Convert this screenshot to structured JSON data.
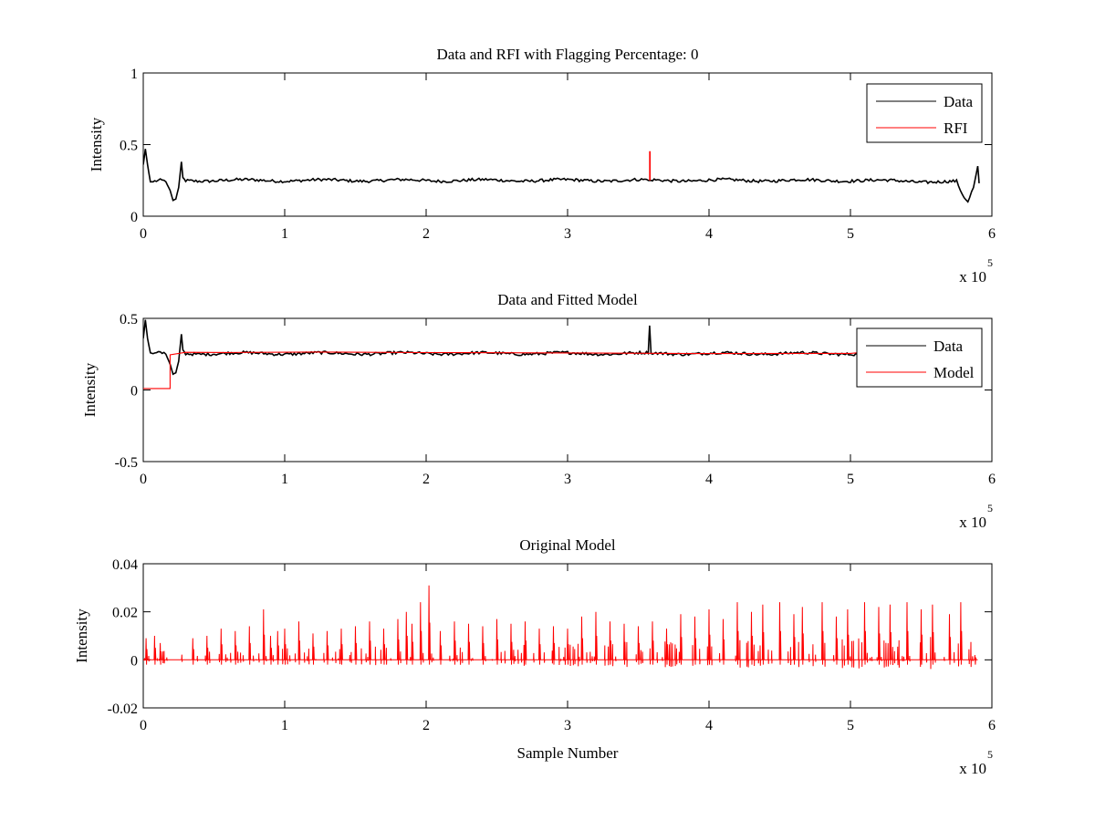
{
  "chart_data": [
    {
      "type": "line",
      "title": "Data and RFI with Flagging Percentage: 0",
      "xlabel": "",
      "ylabel": "Intensity",
      "xlim": [
        0,
        600000
      ],
      "ylim": [
        0,
        1
      ],
      "x_ticks": [
        "0",
        "1",
        "2",
        "3",
        "4",
        "5",
        "6"
      ],
      "y_ticks": [
        "0",
        "0.5",
        "1"
      ],
      "x_exponent": "x 10",
      "x_exponent_power": "5",
      "legend": {
        "position": "top-right",
        "entries": [
          "Data",
          "RFI"
        ]
      },
      "grid": false,
      "series": [
        {
          "name": "Data",
          "color": "#000000",
          "x": [
            0,
            1500,
            3000,
            5000,
            8000,
            12000,
            16000,
            19000,
            21000,
            23000,
            25000,
            27000,
            28000,
            30000,
            60000,
            120000,
            200000,
            300000,
            357000,
            358500,
            360000,
            400000,
            500000,
            575000,
            579000,
            583000,
            587000,
            590000,
            591000
          ],
          "y": [
            0.36,
            0.47,
            0.36,
            0.24,
            0.24,
            0.245,
            0.24,
            0.18,
            0.11,
            0.12,
            0.2,
            0.38,
            0.27,
            0.25,
            0.25,
            0.25,
            0.25,
            0.25,
            0.25,
            0.25,
            0.25,
            0.25,
            0.25,
            0.24,
            0.15,
            0.09,
            0.2,
            0.35,
            0.23
          ]
        },
        {
          "name": "RFI",
          "color": "#ff0000",
          "x": [
            358000,
            358000,
            358400,
            358400
          ],
          "y": [
            0.25,
            0.45,
            0.45,
            0.25
          ]
        }
      ]
    },
    {
      "type": "line",
      "title": "Data and Fitted Model",
      "xlabel": "",
      "ylabel": "Intensity",
      "xlim": [
        0,
        600000
      ],
      "ylim": [
        -0.5,
        0.5
      ],
      "x_ticks": [
        "0",
        "1",
        "2",
        "3",
        "4",
        "5",
        "6"
      ],
      "y_ticks": [
        "-0.5",
        "0",
        "0.5"
      ],
      "x_exponent": "x 10",
      "x_exponent_power": "5",
      "legend": {
        "position": "top-right",
        "entries": [
          "Data",
          "Model"
        ]
      },
      "grid": false,
      "series": [
        {
          "name": "Data",
          "color": "#000000",
          "x": [
            0,
            1500,
            3000,
            5000,
            8000,
            12000,
            16000,
            19000,
            21000,
            23000,
            25000,
            27000,
            28000,
            30000,
            60000,
            120000,
            200000,
            300000,
            357000,
            358000,
            359000,
            360000,
            400000,
            500000,
            505000
          ],
          "y": [
            0.36,
            0.49,
            0.36,
            0.26,
            0.25,
            0.255,
            0.25,
            0.18,
            0.11,
            0.12,
            0.2,
            0.39,
            0.28,
            0.255,
            0.255,
            0.255,
            0.255,
            0.255,
            0.255,
            0.45,
            0.255,
            0.255,
            0.255,
            0.255,
            0.25
          ]
        },
        {
          "name": "Model",
          "color": "#ff0000",
          "x": [
            0,
            10000,
            19000,
            19000,
            30000,
            60000,
            120000,
            200000,
            300000,
            400000,
            500000,
            505000
          ],
          "y": [
            0.01,
            0.01,
            0.01,
            0.25,
            0.26,
            0.26,
            0.26,
            0.26,
            0.26,
            0.26,
            0.26,
            0.26
          ]
        }
      ]
    },
    {
      "type": "line",
      "title": "Original Model",
      "xlabel": "Sample Number",
      "ylabel": "Intensity",
      "xlim": [
        0,
        600000
      ],
      "ylim": [
        -0.02,
        0.04
      ],
      "x_ticks": [
        "0",
        "1",
        "2",
        "3",
        "4",
        "5",
        "6"
      ],
      "y_ticks": [
        "-0.02",
        "0",
        "0.02",
        "0.04"
      ],
      "x_exponent": "x 10",
      "x_exponent_power": "5",
      "legend": null,
      "grid": false,
      "series": [
        {
          "color": "#ff0000",
          "x": [
            2000,
            8000,
            12000,
            35000,
            45000,
            55000,
            65000,
            75000,
            85000,
            90000,
            95000,
            100000,
            110000,
            120000,
            130000,
            140000,
            150000,
            160000,
            170000,
            180000,
            186000,
            190000,
            196000,
            202000,
            210000,
            220000,
            230000,
            240000,
            250000,
            260000,
            270000,
            280000,
            290000,
            300000,
            310000,
            320000,
            330000,
            340000,
            350000,
            360000,
            370000,
            380000,
            390000,
            400000,
            410000,
            420000,
            430000,
            438000,
            450000,
            460000,
            466000,
            480000,
            490000,
            498000,
            510000,
            520000,
            528000,
            540000,
            550000,
            558000,
            570000,
            578000,
            588000
          ],
          "y": [
            0.009,
            0.01,
            0.007,
            0.009,
            0.01,
            0.013,
            0.012,
            0.014,
            0.021,
            0.01,
            0.012,
            0.013,
            0.016,
            0.011,
            0.012,
            0.013,
            0.014,
            0.016,
            0.013,
            0.017,
            0.02,
            0.015,
            0.024,
            0.031,
            0.012,
            0.016,
            0.015,
            0.014,
            0.017,
            0.015,
            0.016,
            0.013,
            0.014,
            0.013,
            0.018,
            0.02,
            0.016,
            0.015,
            0.014,
            0.016,
            0.013,
            0.019,
            0.018,
            0.021,
            0.017,
            0.024,
            0.02,
            0.023,
            0.024,
            0.019,
            0.022,
            0.024,
            0.018,
            0.021,
            0.024,
            0.022,
            0.023,
            0.024,
            0.021,
            0.023,
            0.019,
            0.024,
            0.002
          ]
        }
      ]
    }
  ]
}
